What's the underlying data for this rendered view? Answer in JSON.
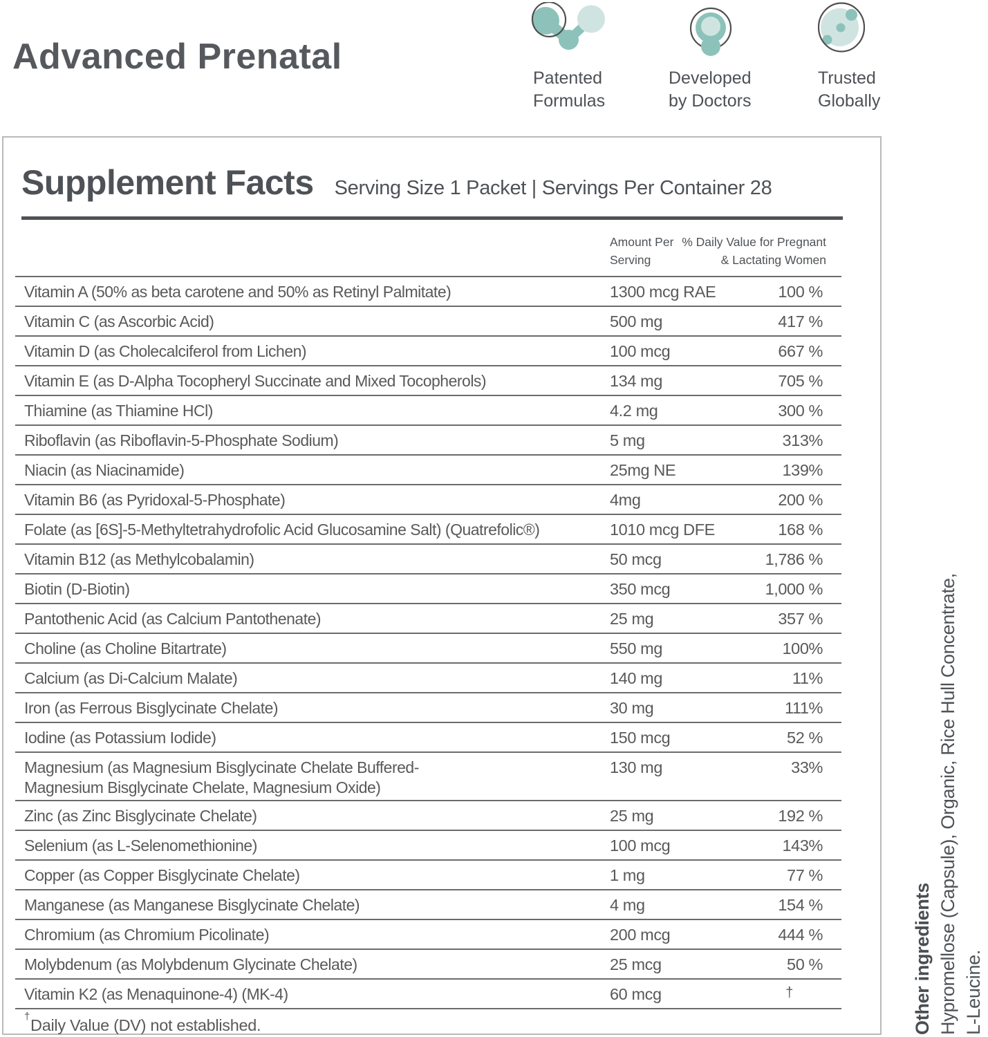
{
  "header": {
    "title": "Advanced Prenatal",
    "badges": [
      {
        "icon": "molecule-icon",
        "label": "Patented\nFormulas"
      },
      {
        "icon": "doctor-icon",
        "label": "Developed\nby Doctors"
      },
      {
        "icon": "globe-icon",
        "label": "Trusted\nGlobally"
      }
    ]
  },
  "supplement_facts": {
    "title": "Supplement Facts",
    "serving_info": "Serving Size 1 Packet | Servings Per Container 28",
    "columns": {
      "amount": "Amount Per\nServing",
      "daily_value": "% Daily Value for Pregnant\n& Lactating Women"
    },
    "rows": [
      {
        "name": "Vitamin A (50% as beta carotene and 50% as Retinyl Palmitate)",
        "amount": "1300 mcg RAE",
        "dv": "100 %"
      },
      {
        "name": "Vitamin C (as Ascorbic Acid)",
        "amount": "500 mg",
        "dv": "417 %"
      },
      {
        "name": "Vitamin D (as Cholecalciferol from Lichen)",
        "amount": "100 mcg",
        "dv": "667 %"
      },
      {
        "name": "Vitamin E (as D-Alpha Tocopheryl Succinate and Mixed Tocopherols)",
        "amount": "134 mg",
        "dv": "705 %"
      },
      {
        "name": "Thiamine (as Thiamine HCl)",
        "amount": "4.2 mg",
        "dv": "300 %"
      },
      {
        "name": "Riboflavin (as Riboflavin-5-Phosphate Sodium)",
        "amount": "5 mg",
        "dv": "313%"
      },
      {
        "name": "Niacin (as Niacinamide)",
        "amount": "25mg NE",
        "dv": "139%"
      },
      {
        "name": "Vitamin B6 (as Pyridoxal-5-Phosphate)",
        "amount": "4mg",
        "dv": "200 %"
      },
      {
        "name": "Folate (as [6S]-5-Methyltetrahydrofolic Acid Glucosamine Salt) (Quatrefolic®)",
        "amount": "1010 mcg DFE",
        "dv": "168 %"
      },
      {
        "name": "Vitamin B12 (as Methylcobalamin)",
        "amount": "50 mcg",
        "dv": "1,786 %"
      },
      {
        "name": "Biotin (D-Biotin)",
        "amount": "350 mcg",
        "dv": "1,000 %"
      },
      {
        "name": "Pantothenic Acid (as Calcium Pantothenate)",
        "amount": "25 mg",
        "dv": "357 %"
      },
      {
        "name": "Choline (as Choline Bitartrate)",
        "amount": "550 mg",
        "dv": "100%"
      },
      {
        "name": "Calcium (as Di-Calcium Malate)",
        "amount": "140 mg",
        "dv": "11%"
      },
      {
        "name": "Iron (as Ferrous Bisglycinate Chelate)",
        "amount": "30 mg",
        "dv": "111%"
      },
      {
        "name": "Iodine (as Potassium Iodide)",
        "amount": "150 mcg",
        "dv": "52 %"
      },
      {
        "name": "Magnesium (as Magnesium Bisglycinate Chelate Buffered-\nMagnesium Bisglycinate Chelate, Magnesium Oxide)",
        "amount": "130 mg",
        "dv": "33%"
      },
      {
        "name": "Zinc (as Zinc Bisglycinate Chelate)",
        "amount": "25 mg",
        "dv": "192 %"
      },
      {
        "name": "Selenium (as L-Selenomethionine)",
        "amount": "100 mcg",
        "dv": "143%"
      },
      {
        "name": "Copper (as Copper Bisglycinate Chelate)",
        "amount": "1 mg",
        "dv": "77 %"
      },
      {
        "name": "Manganese (as Manganese Bisglycinate Chelate)",
        "amount": "4 mg",
        "dv": "154 %"
      },
      {
        "name": "Chromium (as Chromium Picolinate)",
        "amount": "200 mcg",
        "dv": "444 %"
      },
      {
        "name": "Molybdenum (as Molybdenum Glycinate Chelate)",
        "amount": "25 mcg",
        "dv": "50 %"
      },
      {
        "name": "Vitamin K2 (as Menaquinone-4) (MK-4)",
        "amount": "60 mcg",
        "dv": "†"
      }
    ],
    "footnote": {
      "dagger": "†",
      "text": "Daily Value (DV) not established."
    }
  },
  "other_ingredients": {
    "heading": "Other ingredients",
    "text": "Hypromellose (Capsule), Organic, Rice Hull Concentrate,\nL-Leucine."
  },
  "colors": {
    "teal_medium": "#8cc2ba",
    "teal_light": "#cfe4e0",
    "text_dark": "#4e5257",
    "text_gray": "#595959",
    "rule_dark": "#4e5257",
    "rule_light": "#6b6b6b",
    "box_border": "#b9b9b9",
    "icon_outline": "#4f4f4f"
  }
}
